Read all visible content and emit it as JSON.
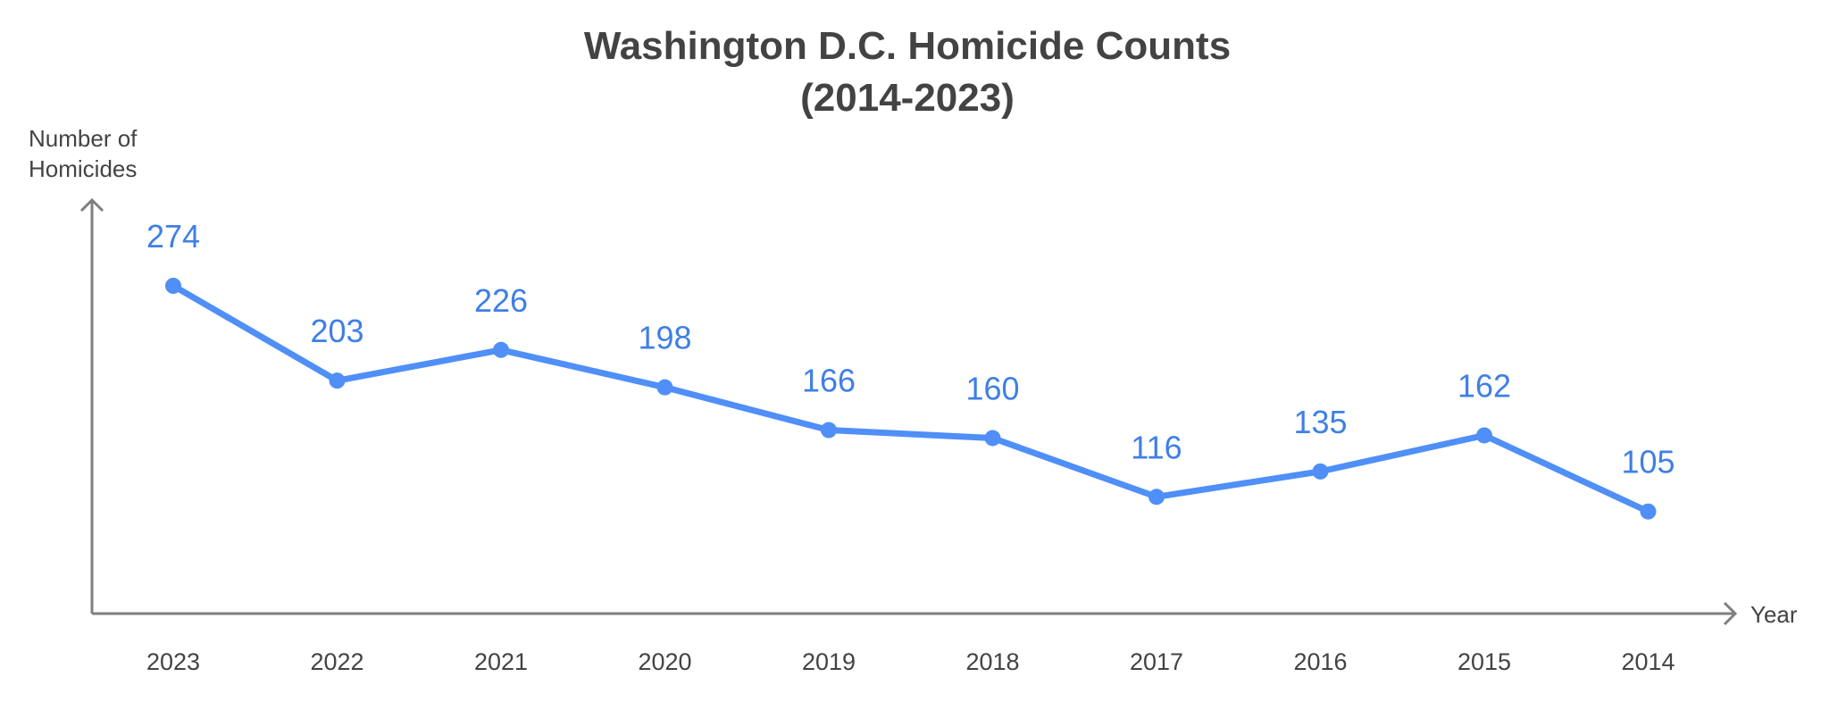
{
  "chart_data": {
    "type": "line",
    "title": "Washington D.C. Homicide Counts",
    "subtitle": "(2014-2023)",
    "xlabel": "Year",
    "ylabel_lines": [
      "Number of",
      "Homicides"
    ],
    "categories": [
      "2023",
      "2022",
      "2021",
      "2020",
      "2019",
      "2018",
      "2017",
      "2016",
      "2015",
      "2014"
    ],
    "series": [
      {
        "values": [
          274,
          203,
          226,
          198,
          166,
          160,
          116,
          135,
          162,
          105
        ]
      }
    ],
    "data_labels": [
      "274",
      "203",
      "226",
      "198",
      "166",
      "160",
      "116",
      "135",
      "162",
      "105"
    ],
    "grid": false,
    "legend": "none"
  },
  "colors": {
    "series": "#4f8ff7",
    "data_label": "#3f7fe6",
    "axis": "#7f7f7f",
    "text": "#434343"
  }
}
